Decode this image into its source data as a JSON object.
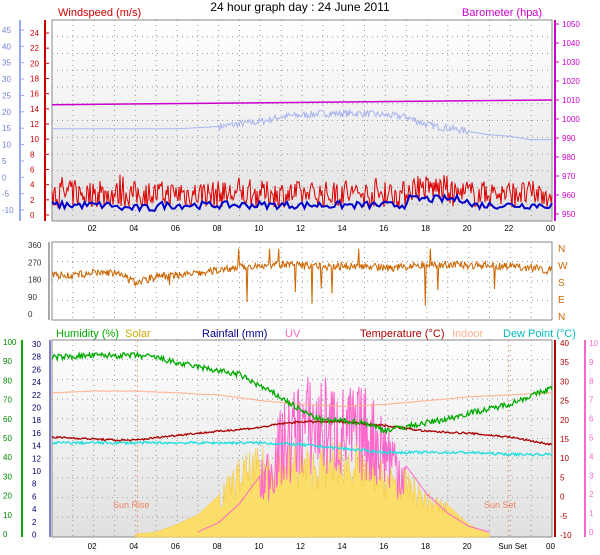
{
  "title": "24 hour graph day : 24 June 2011",
  "colors": {
    "wind": "#dd0000",
    "wind_avg": "#0000cc",
    "baro": "#cc00cc",
    "temp_line": "#7777dd",
    "dir": "#cc6600",
    "humidity": "#00aa00",
    "solar": "#ffdd55",
    "rain": "#000088",
    "uv": "#ff66cc",
    "temperature": "#aa0000",
    "indoor": "#ffb090",
    "dew": "#22dddd"
  },
  "chart_data": [
    {
      "type": "line",
      "name": "wind-pressure",
      "title": "Windspeed (m/s)",
      "title_right": "Barometer (hpa)",
      "x_ticks": [
        "02",
        "04",
        "06",
        "08",
        "10",
        "12",
        "14",
        "16",
        "18",
        "20",
        "22",
        "00"
      ],
      "left_axis_outer": {
        "ticks": [
          45,
          40,
          35,
          30,
          25,
          20,
          15,
          10,
          5,
          0,
          -5,
          -10
        ]
      },
      "left_axis_inner": {
        "ticks": [
          24,
          22,
          20,
          18,
          16,
          14,
          12,
          10,
          8,
          6,
          4,
          2,
          0
        ]
      },
      "right_axis": {
        "ticks": [
          1050,
          1040,
          1030,
          1020,
          1010,
          1000,
          990,
          980,
          970,
          960,
          950
        ]
      },
      "series": [
        {
          "name": "Barometer",
          "axis": "right",
          "start": 1007.5,
          "end": 1010.0
        },
        {
          "name": "Temperature",
          "axis": "left_outer",
          "x": [
            0,
            3,
            6,
            8,
            10,
            11,
            12,
            13,
            14,
            15,
            16,
            17,
            18,
            19,
            20,
            21,
            22,
            23,
            24
          ],
          "values": [
            14.8,
            14.8,
            14.8,
            15.5,
            17,
            18.5,
            19,
            19.5,
            19.5,
            19.5,
            19,
            18.5,
            16,
            15,
            14,
            13,
            12.5,
            11.5,
            11.5
          ]
        },
        {
          "name": "Wind gust",
          "axis": "left_inner",
          "range": [
            0.5,
            5.5
          ]
        },
        {
          "name": "Wind average",
          "axis": "left_inner",
          "range": [
            0.2,
            2.5
          ]
        }
      ]
    },
    {
      "type": "line",
      "name": "wind-direction",
      "left_axis": {
        "ticks": [
          360,
          270,
          180,
          90,
          0
        ]
      },
      "right_axis": {
        "ticks": [
          "N",
          "W",
          "S",
          "E",
          "N"
        ]
      },
      "x": [
        0,
        1,
        2,
        3,
        4,
        5,
        6,
        7,
        8,
        9,
        10,
        11,
        12,
        13,
        14,
        15,
        16,
        17,
        18,
        19,
        20,
        21,
        22,
        23,
        24
      ],
      "values": [
        205,
        200,
        215,
        215,
        165,
        195,
        205,
        210,
        230,
        245,
        255,
        260,
        250,
        248,
        250,
        250,
        240,
        245,
        260,
        258,
        255,
        255,
        248,
        242,
        225
      ]
    },
    {
      "type": "line",
      "name": "weather",
      "labels": [
        "Humidity (%)",
        "Solar",
        "Rainfall (mm)",
        "UV",
        "Temperature (°C)",
        "Indoor",
        "Dew Point (°C)"
      ],
      "x_ticks": [
        "02",
        "04",
        "06",
        "08",
        "10",
        "12",
        "14",
        "16",
        "18",
        "20",
        "Sun Set",
        "00"
      ],
      "annotations": [
        "Sun Rise",
        "Sun Set"
      ],
      "axis_humidity": {
        "ticks": [
          100,
          90,
          80,
          70,
          60,
          50,
          40,
          30,
          20,
          10,
          0
        ]
      },
      "axis_rain": {
        "ticks": [
          30,
          28,
          26,
          24,
          22,
          20,
          18,
          16,
          14,
          12,
          10,
          8,
          6,
          4,
          2,
          0
        ]
      },
      "axis_temp": {
        "ticks": [
          40,
          35,
          30,
          25,
          20,
          15,
          10,
          5,
          0,
          -5,
          -10
        ]
      },
      "axis_uv": {
        "ticks": [
          10,
          9,
          8,
          7,
          6,
          5,
          4,
          3,
          2,
          1,
          0
        ]
      },
      "series": [
        {
          "name": "Humidity",
          "axis": "humidity",
          "x": [
            0,
            2,
            4,
            5,
            6,
            7,
            8,
            9,
            10,
            11,
            12,
            13,
            14,
            15,
            16,
            17,
            18,
            19,
            20,
            21,
            22,
            23,
            24
          ],
          "values": [
            92,
            93,
            93,
            92,
            89,
            87,
            85,
            83,
            77,
            71,
            64,
            59,
            59,
            58,
            54,
            56,
            58,
            60,
            63,
            65,
            68,
            72,
            76
          ]
        },
        {
          "name": "Indoor",
          "axis": "temp",
          "x": [
            0,
            2,
            4,
            6,
            8,
            10,
            12,
            14,
            16,
            18,
            20,
            22,
            24
          ],
          "values": [
            27,
            27.5,
            27.5,
            27,
            26.5,
            25,
            24,
            23.5,
            24,
            25,
            26,
            26.5,
            27
          ]
        },
        {
          "name": "Temperature",
          "axis": "temp",
          "x": [
            0,
            2,
            3,
            4,
            6,
            8,
            10,
            11,
            12,
            14,
            16,
            18,
            20,
            22,
            24
          ],
          "values": [
            15.5,
            15,
            14.7,
            14.7,
            16,
            17,
            18,
            19,
            19.5,
            19.5,
            18.5,
            17,
            16.5,
            15.5,
            13.5
          ]
        },
        {
          "name": "Dew Point",
          "axis": "temp",
          "x": [
            0,
            2,
            4,
            6,
            8,
            10,
            12,
            14,
            16,
            18,
            20,
            22,
            24
          ],
          "values": [
            14,
            14,
            14,
            14,
            14,
            14,
            13.5,
            12.5,
            11.5,
            11.5,
            11.5,
            11,
            11
          ]
        },
        {
          "name": "Solar",
          "axis": "humidity",
          "x": [
            4,
            5,
            6,
            7,
            8,
            9,
            10,
            11,
            12,
            13,
            14,
            15,
            16,
            17,
            18,
            19,
            20,
            21
          ],
          "values": [
            0,
            1,
            5,
            10,
            20,
            35,
            40,
            45,
            40,
            40,
            45,
            40,
            33,
            30,
            20,
            15,
            5,
            0
          ]
        },
        {
          "name": "UV",
          "axis": "uv",
          "x": [
            7,
            8,
            9,
            10,
            11,
            12,
            13,
            14,
            15,
            16,
            17,
            18,
            19,
            20,
            21
          ],
          "values": [
            0,
            0.5,
            1.5,
            3,
            5.5,
            7,
            7,
            6.5,
            6.5,
            5.5,
            3.5,
            2,
            1,
            0.3,
            0
          ]
        }
      ]
    }
  ]
}
